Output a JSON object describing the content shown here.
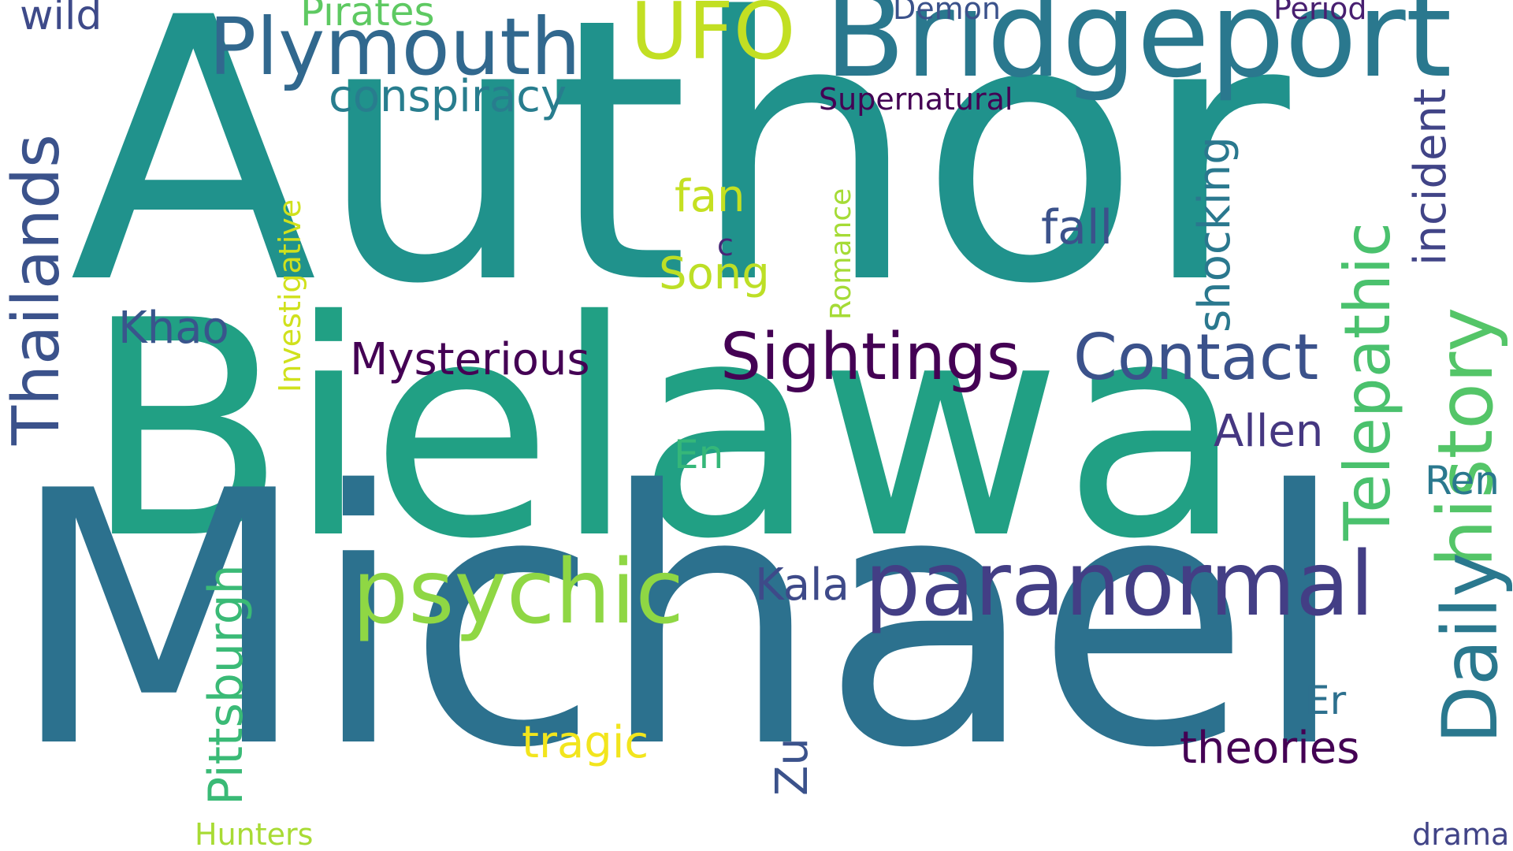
{
  "words": [
    {
      "name": "author",
      "text": "Author",
      "color": "#20928c"
    },
    {
      "name": "bielawa",
      "text": "Bielawa",
      "color": "#21a084"
    },
    {
      "name": "michael",
      "text": "Michael",
      "color": "#2c718e"
    },
    {
      "name": "bridgeport",
      "text": "Bridgeport",
      "color": "#2a788e"
    },
    {
      "name": "plymouth",
      "text": "Plymouth",
      "color": "#31688e"
    },
    {
      "name": "ufo",
      "text": "UFO",
      "color": "#c2df23"
    },
    {
      "name": "pirates",
      "text": "Pirates",
      "color": "#5ec962"
    },
    {
      "name": "wild",
      "text": "wild",
      "color": "#3e4a89"
    },
    {
      "name": "demon",
      "text": "Demon",
      "color": "#3b528b"
    },
    {
      "name": "period",
      "text": "Period",
      "color": "#481f70"
    },
    {
      "name": "conspiracy",
      "text": "conspiracy",
      "color": "#287d8e"
    },
    {
      "name": "supernatural",
      "text": "Supernatural",
      "color": "#440154"
    },
    {
      "name": "thailands",
      "text": "Thailands",
      "color": "#3b528b"
    },
    {
      "name": "investigative",
      "text": "Investigative",
      "color": "#d0e11c"
    },
    {
      "name": "fan",
      "text": "fan",
      "color": "#c5e021"
    },
    {
      "name": "c",
      "text": "c",
      "color": "#482677"
    },
    {
      "name": "song",
      "text": "Song",
      "color": "#bddf26"
    },
    {
      "name": "romance",
      "text": "Romance",
      "color": "#a5db36"
    },
    {
      "name": "fall",
      "text": "fall",
      "color": "#3b528b"
    },
    {
      "name": "shocking",
      "text": "shocking",
      "color": "#2a788e"
    },
    {
      "name": "incident",
      "text": "incident",
      "color": "#414487"
    },
    {
      "name": "history",
      "text": "history",
      "color": "#54c568"
    },
    {
      "name": "khao",
      "text": "Khao",
      "color": "#39558c"
    },
    {
      "name": "mysterious",
      "text": "Mysterious",
      "color": "#440154"
    },
    {
      "name": "sightings",
      "text": "Sightings",
      "color": "#440154"
    },
    {
      "name": "contact",
      "text": "Contact",
      "color": "#3b528b"
    },
    {
      "name": "telepathic",
      "text": "Telepathic",
      "color": "#4ac16d"
    },
    {
      "name": "daily",
      "text": "Daily",
      "color": "#2a788e"
    },
    {
      "name": "allen",
      "text": "Allen",
      "color": "#453781"
    },
    {
      "name": "en",
      "text": "En",
      "color": "#35b779"
    },
    {
      "name": "ren",
      "text": "Ren",
      "color": "#2a788e"
    },
    {
      "name": "psychic",
      "text": "psychic",
      "color": "#8fd744"
    },
    {
      "name": "paranormal",
      "text": "paranormal",
      "color": "#433e85"
    },
    {
      "name": "kala",
      "text": "Kala",
      "color": "#3e4a89"
    },
    {
      "name": "pittsburgh",
      "text": "Pittsburgh",
      "color": "#3aba76"
    },
    {
      "name": "er",
      "text": "Er",
      "color": "#2d708e"
    },
    {
      "name": "tragic",
      "text": "tragic",
      "color": "#f2e51d"
    },
    {
      "name": "zu",
      "text": "Zu",
      "color": "#3b528b"
    },
    {
      "name": "theories",
      "text": "theories",
      "color": "#440154"
    },
    {
      "name": "hunters",
      "text": "Hunters",
      "color": "#a8db34"
    },
    {
      "name": "drama",
      "text": "drama",
      "color": "#414487"
    }
  ]
}
